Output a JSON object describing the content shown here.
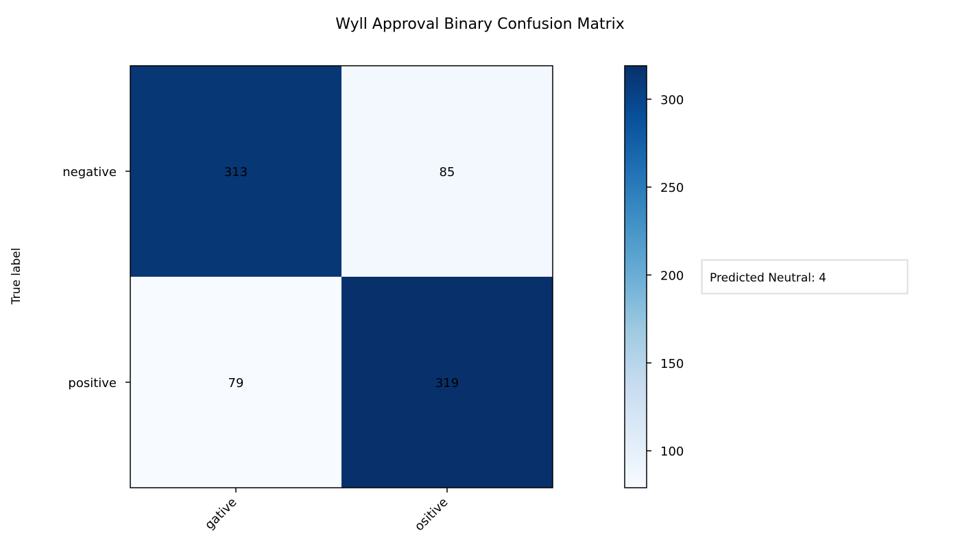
{
  "chart_data": {
    "type": "heatmap",
    "title": "Wyll Approval Binary Confusion Matrix",
    "ylabel": "True label",
    "xlabel": "",
    "row_labels": [
      "negative",
      "positive"
    ],
    "col_labels": [
      "negative",
      "positive"
    ],
    "x_tick_labels_visible": [
      "gative",
      "ositive"
    ],
    "matrix": [
      [
        313,
        85
      ],
      [
        79,
        319
      ]
    ],
    "colormap": "Blues",
    "color_range": [
      79,
      319
    ],
    "colorbar": {
      "ticks": [
        100,
        150,
        200,
        250,
        300
      ],
      "tick_labels": [
        "100",
        "150",
        "200",
        "250",
        "300"
      ]
    },
    "annotation": "Predicted Neutral: 4",
    "grid": false,
    "legend": "none"
  }
}
